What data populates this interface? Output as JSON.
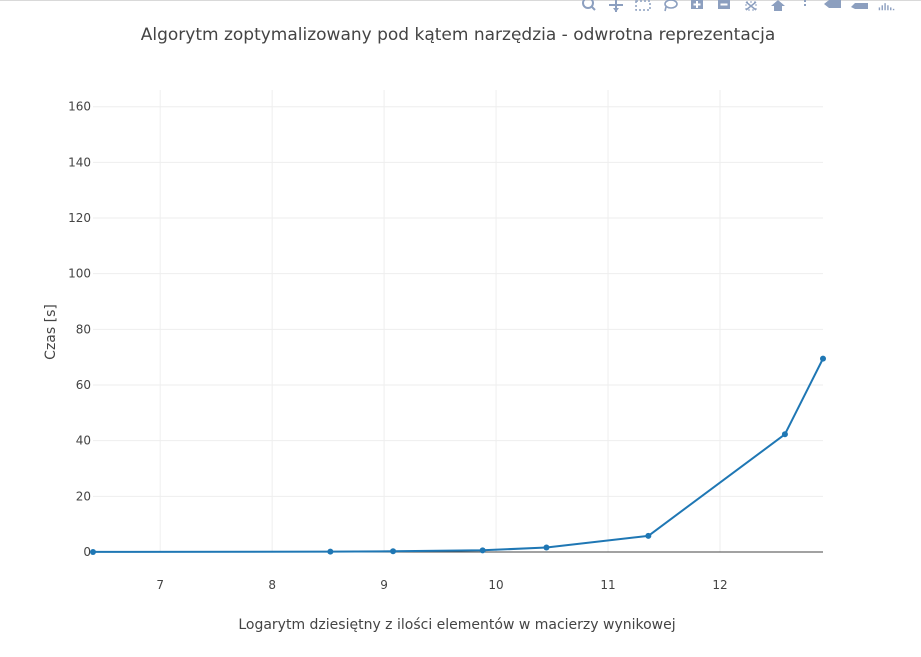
{
  "modebar": {
    "icons": [
      "zoom-icon",
      "pan-icon",
      "box-select-icon",
      "lasso-icon",
      "zoom-in-icon",
      "zoom-out-icon",
      "autoscale-icon",
      "reset-axes-icon",
      "spike-lines-icon",
      "hover-closest-icon",
      "hover-compare-icon",
      "plotly-logo-icon"
    ],
    "icon_color": "#8c9fbf"
  },
  "chart_data": {
    "type": "line",
    "title": "Algorytm zoptymalizowany pod kątem narzędzia - odwrotna reprezentacja",
    "xlabel": "Logarytm dziesiętny z ilości elementów w macierzy wynikowej",
    "ylabel": "Czas [s]",
    "xlim": [
      6.4,
      12.92
    ],
    "ylim": [
      0,
      166
    ],
    "xticks": [
      7,
      8,
      9,
      10,
      11,
      12
    ],
    "yticks": [
      0,
      20,
      40,
      60,
      80,
      100,
      120,
      140,
      160
    ],
    "grid": true,
    "legend": "none",
    "line_color": "#1f77b4",
    "series": [
      {
        "x": [
          6.4,
          8.52,
          9.08,
          9.88,
          10.45,
          11.36,
          12.58,
          12.92
        ],
        "y": [
          0.02,
          0.15,
          0.25,
          0.6,
          1.6,
          5.8,
          42.3,
          69.5
        ]
      }
    ]
  }
}
